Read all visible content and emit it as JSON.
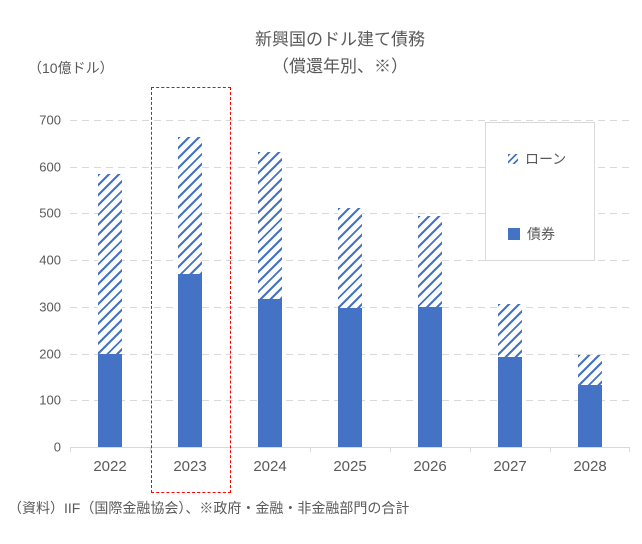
{
  "title": {
    "line1": "新興国のドル建て債務",
    "line2": "（償還年別、※）"
  },
  "unit_label": "（10億ドル）",
  "caption": "（資料）IIF（国際金融協会）、※政府・金融・非金融部門の合計",
  "colors": {
    "bar_blue": "#4472C4",
    "highlight_red": "#FF0000",
    "gridline_gray": "#D9D9D9",
    "text_gray": "#595959"
  },
  "legend": {
    "items": [
      {
        "label": "ローン",
        "style": "hatched"
      },
      {
        "label": "債券",
        "style": "solid"
      }
    ]
  },
  "chart_data": {
    "type": "bar",
    "stacked": true,
    "title": "新興国のドル建て債務（償還年別、※）",
    "ylabel": "（10億ドル）",
    "categories": [
      "2022",
      "2023",
      "2024",
      "2025",
      "2026",
      "2027",
      "2028"
    ],
    "series": [
      {
        "name": "債券",
        "style": "solid",
        "values": [
          200,
          371,
          317,
          298,
          300,
          192,
          132
        ]
      },
      {
        "name": "ローン",
        "style": "hatched",
        "values": [
          385,
          292,
          314,
          213,
          195,
          114,
          64
        ]
      }
    ],
    "totals": [
      585,
      663,
      631,
      511,
      495,
      306,
      196
    ],
    "ylim": [
      0,
      700
    ],
    "yticks": [
      0,
      100,
      200,
      300,
      400,
      500,
      600,
      700
    ],
    "grid": "horizontal-dashed",
    "legend_position": "overlay-right",
    "highlight": {
      "category": "2023",
      "style": "red-dashed-rectangle"
    }
  }
}
